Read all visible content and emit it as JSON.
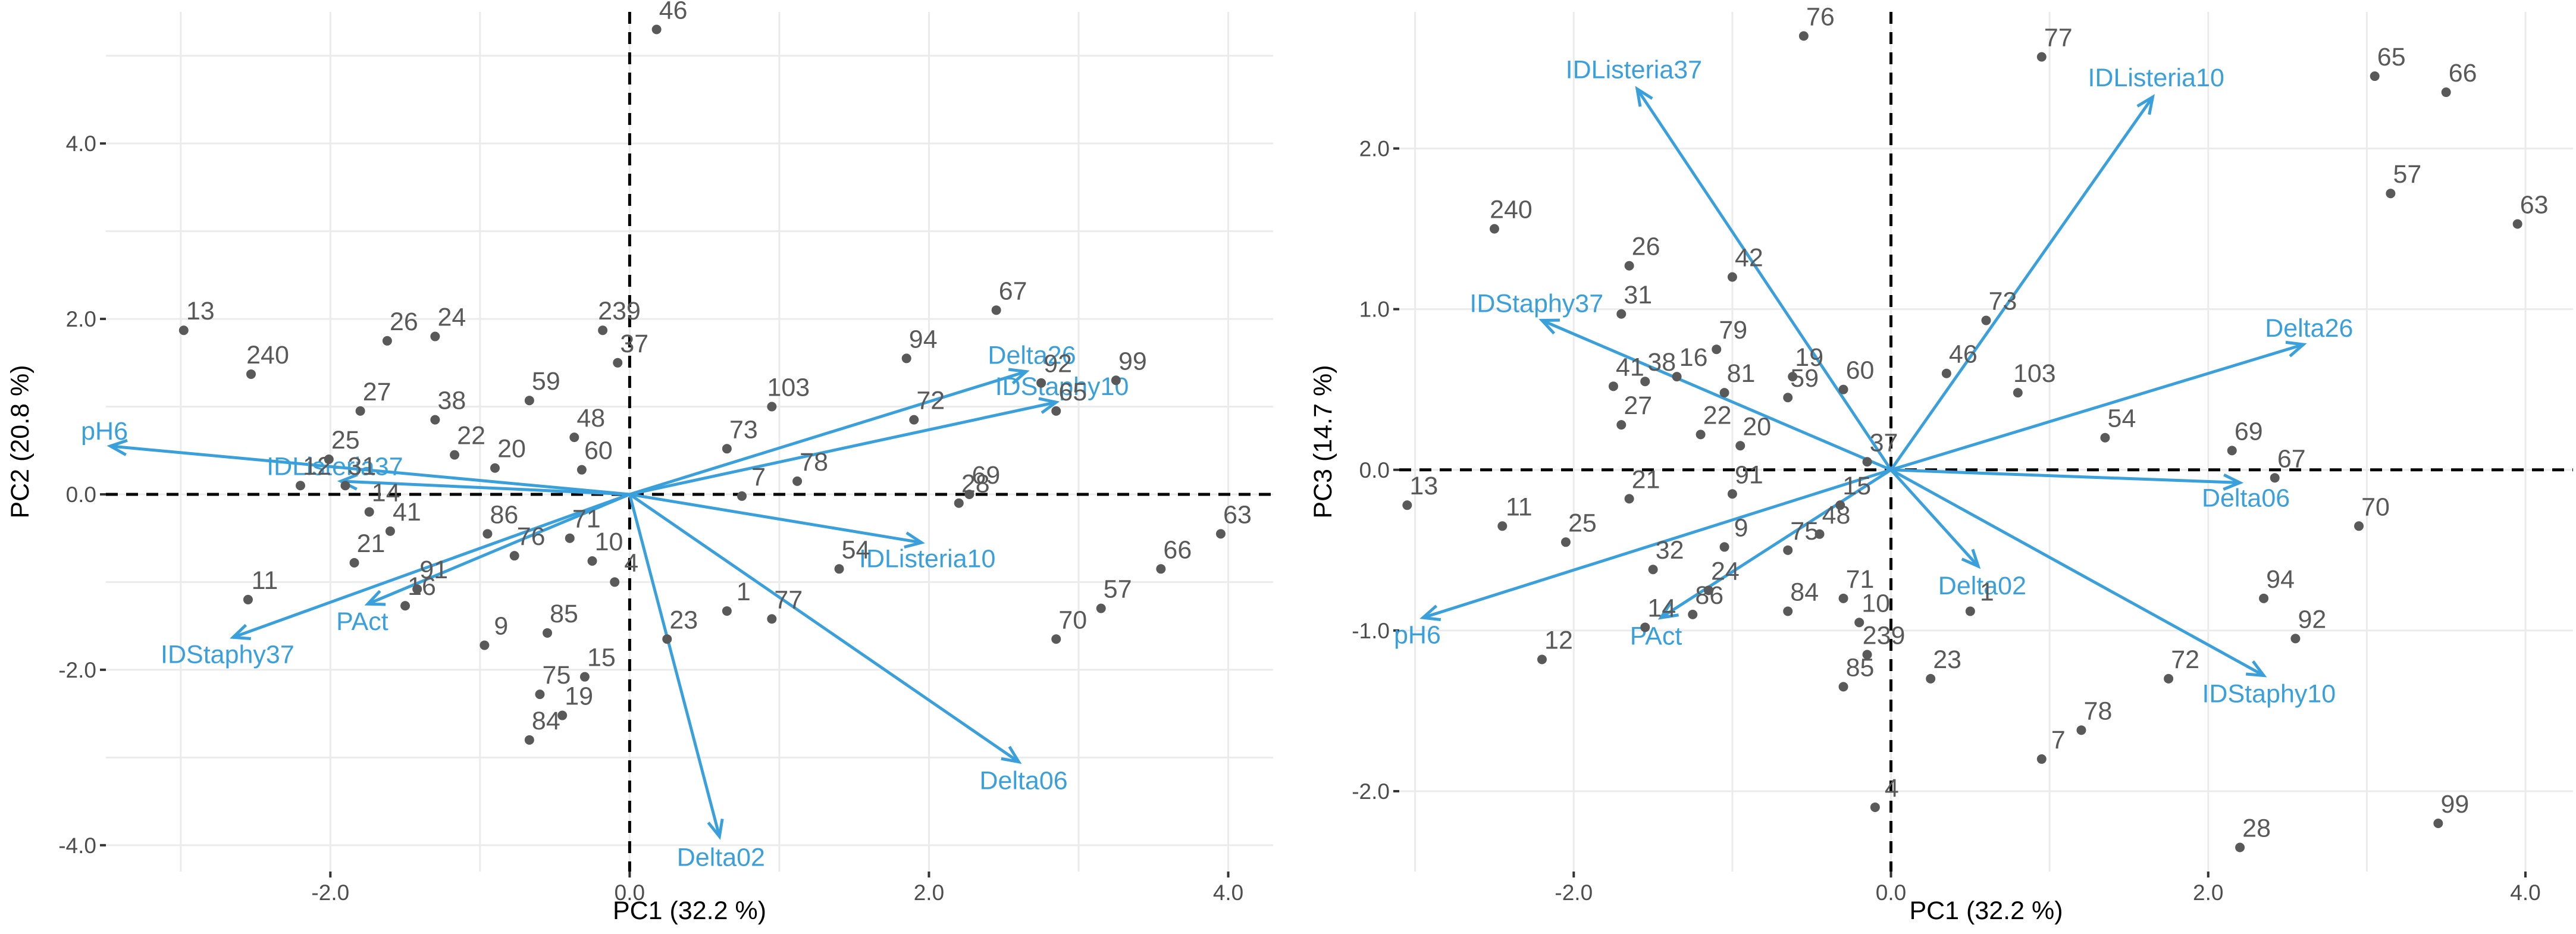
{
  "colors": {
    "points": "#595959",
    "arrows": "#3aa0dc",
    "grid": "#ebebeb"
  },
  "chart_data": [
    {
      "type": "scatter",
      "title": "",
      "xlabel": "PC1 (32.2 %)",
      "ylabel": "PC2 (20.8 %)",
      "xlim": [
        -3.5,
        4.3
      ],
      "ylim": [
        -4.3,
        5.5
      ],
      "xticks": [
        -2,
        0,
        2,
        4
      ],
      "xtick_labels": [
        "-2.0",
        "0.0",
        "2.0",
        "4.0"
      ],
      "yticks": [
        -4,
        -2,
        0,
        2,
        4
      ],
      "ytick_labels": [
        "-4.0",
        "-2.0",
        "0.0",
        "2.0",
        "4.0"
      ],
      "grid": true,
      "points": [
        {
          "label": "46",
          "x": 0.18,
          "y": 5.3
        },
        {
          "label": "13",
          "x": -2.98,
          "y": 1.87
        },
        {
          "label": "240",
          "x": -2.53,
          "y": 1.37
        },
        {
          "label": "24",
          "x": -1.3,
          "y": 1.8
        },
        {
          "label": "26",
          "x": -1.62,
          "y": 1.75
        },
        {
          "label": "239",
          "x": -0.18,
          "y": 1.87
        },
        {
          "label": "37",
          "x": -0.08,
          "y": 1.5
        },
        {
          "label": "59",
          "x": -0.67,
          "y": 1.07
        },
        {
          "label": "27",
          "x": -1.8,
          "y": 0.95
        },
        {
          "label": "38",
          "x": -1.3,
          "y": 0.85
        },
        {
          "label": "48",
          "x": -0.37,
          "y": 0.65
        },
        {
          "label": "22",
          "x": -1.17,
          "y": 0.45
        },
        {
          "label": "25",
          "x": -2.01,
          "y": 0.4
        },
        {
          "label": "20",
          "x": -0.9,
          "y": 0.3
        },
        {
          "label": "60",
          "x": -0.32,
          "y": 0.28
        },
        {
          "label": "31",
          "x": -1.9,
          "y": 0.1
        },
        {
          "label": "14",
          "x": -1.74,
          "y": -0.2
        },
        {
          "label": "12",
          "x": -2.2,
          "y": 0.1
        },
        {
          "label": "41",
          "x": -1.6,
          "y": -0.42
        },
        {
          "label": "86",
          "x": -0.95,
          "y": -0.45
        },
        {
          "label": "71",
          "x": -0.4,
          "y": -0.5
        },
        {
          "label": "76",
          "x": -0.77,
          "y": -0.7
        },
        {
          "label": "10",
          "x": -0.25,
          "y": -0.76
        },
        {
          "label": "21",
          "x": -1.84,
          "y": -0.78
        },
        {
          "label": "91",
          "x": -1.42,
          "y": -1.08
        },
        {
          "label": "16",
          "x": -1.5,
          "y": -1.27
        },
        {
          "label": "9",
          "x": -0.97,
          "y": -1.72
        },
        {
          "label": "85",
          "x": -0.55,
          "y": -1.58
        },
        {
          "label": "4",
          "x": -0.1,
          "y": -1.0
        },
        {
          "label": "75",
          "x": -0.6,
          "y": -2.28
        },
        {
          "label": "84",
          "x": -0.67,
          "y": -2.8
        },
        {
          "label": "15",
          "x": -0.3,
          "y": -2.08
        },
        {
          "label": "19",
          "x": -0.45,
          "y": -2.52
        },
        {
          "label": "11",
          "x": -2.55,
          "y": -1.2
        },
        {
          "label": "23",
          "x": 0.25,
          "y": -1.65
        },
        {
          "label": "1",
          "x": 0.65,
          "y": -1.33
        },
        {
          "label": "77",
          "x": 0.95,
          "y": -1.42
        },
        {
          "label": "103",
          "x": 0.95,
          "y": 1.0
        },
        {
          "label": "73",
          "x": 0.65,
          "y": 0.52
        },
        {
          "label": "7",
          "x": 0.75,
          "y": -0.02
        },
        {
          "label": "78",
          "x": 1.12,
          "y": 0.15
        },
        {
          "label": "72",
          "x": 1.9,
          "y": 0.85
        },
        {
          "label": "94",
          "x": 1.85,
          "y": 1.55
        },
        {
          "label": "67",
          "x": 2.45,
          "y": 2.1
        },
        {
          "label": "92",
          "x": 2.75,
          "y": 1.27
        },
        {
          "label": "99",
          "x": 3.25,
          "y": 1.3
        },
        {
          "label": "65",
          "x": 2.85,
          "y": 0.95
        },
        {
          "label": "69",
          "x": 2.27,
          "y": 0.0
        },
        {
          "label": "28",
          "x": 2.2,
          "y": -0.1
        },
        {
          "label": "54",
          "x": 1.4,
          "y": -0.85
        },
        {
          "label": "63",
          "x": 3.95,
          "y": -0.45
        },
        {
          "label": "66",
          "x": 3.55,
          "y": -0.85
        },
        {
          "label": "57",
          "x": 3.15,
          "y": -1.3
        },
        {
          "label": "70",
          "x": 2.85,
          "y": -1.65
        }
      ],
      "loadings": [
        {
          "label": "pH6",
          "x": -3.47,
          "y": 0.55
        },
        {
          "label": "IDListeria37",
          "x": -1.93,
          "y": 0.15
        },
        {
          "label": "PAct",
          "x": -1.75,
          "y": -1.25
        },
        {
          "label": "IDStaphy37",
          "x": -2.65,
          "y": -1.63
        },
        {
          "label": "Delta26",
          "x": 2.65,
          "y": 1.4
        },
        {
          "label": "IDStaphy10",
          "x": 2.85,
          "y": 1.05
        },
        {
          "label": "IDListeria10",
          "x": 1.95,
          "y": -0.55
        },
        {
          "label": "Delta06",
          "x": 2.6,
          "y": -3.05
        },
        {
          "label": "Delta02",
          "x": 0.6,
          "y": -3.9
        }
      ]
    },
    {
      "type": "scatter",
      "title": "",
      "xlabel": "PC1 (32.2 %)",
      "ylabel": "PC3 (14.7 %)",
      "xlim": [
        -3.1,
        4.3
      ],
      "ylim": [
        -2.5,
        2.85
      ],
      "xticks": [
        -2,
        0,
        2,
        4
      ],
      "xtick_labels": [
        "-2.0",
        "0.0",
        "2.0",
        "4.0"
      ],
      "yticks": [
        -2,
        -1,
        0,
        1,
        2
      ],
      "ytick_labels": [
        "-2.0",
        "-1.0",
        "0.0",
        "1.0",
        "2.0"
      ],
      "grid": true,
      "points": [
        {
          "label": "76",
          "x": -0.55,
          "y": 2.7
        },
        {
          "label": "77",
          "x": 0.95,
          "y": 2.57
        },
        {
          "label": "65",
          "x": 3.05,
          "y": 2.45
        },
        {
          "label": "66",
          "x": 3.5,
          "y": 2.35
        },
        {
          "label": "57",
          "x": 3.15,
          "y": 1.72
        },
        {
          "label": "63",
          "x": 3.95,
          "y": 1.53
        },
        {
          "label": "240",
          "x": -2.5,
          "y": 1.5
        },
        {
          "label": "26",
          "x": -1.65,
          "y": 1.27
        },
        {
          "label": "42",
          "x": -1.0,
          "y": 1.2
        },
        {
          "label": "31",
          "x": -1.7,
          "y": 0.97
        },
        {
          "label": "79",
          "x": -1.1,
          "y": 0.75
        },
        {
          "label": "16",
          "x": -1.35,
          "y": 0.58
        },
        {
          "label": "41",
          "x": -1.75,
          "y": 0.52
        },
        {
          "label": "38",
          "x": -1.55,
          "y": 0.55
        },
        {
          "label": "81",
          "x": -1.05,
          "y": 0.48
        },
        {
          "label": "19",
          "x": -0.62,
          "y": 0.58
        },
        {
          "label": "60",
          "x": -0.3,
          "y": 0.5
        },
        {
          "label": "59",
          "x": -0.65,
          "y": 0.45
        },
        {
          "label": "27",
          "x": -1.7,
          "y": 0.28
        },
        {
          "label": "22",
          "x": -1.2,
          "y": 0.22
        },
        {
          "label": "20",
          "x": -0.95,
          "y": 0.15
        },
        {
          "label": "37",
          "x": -0.15,
          "y": 0.05
        },
        {
          "label": "73",
          "x": 0.6,
          "y": 0.93
        },
        {
          "label": "46",
          "x": 0.35,
          "y": 0.6
        },
        {
          "label": "103",
          "x": 0.8,
          "y": 0.48
        },
        {
          "label": "13",
          "x": -3.05,
          "y": -0.22
        },
        {
          "label": "11",
          "x": -2.45,
          "y": -0.35
        },
        {
          "label": "25",
          "x": -2.05,
          "y": -0.45
        },
        {
          "label": "21",
          "x": -1.65,
          "y": -0.18
        },
        {
          "label": "91",
          "x": -1.0,
          "y": -0.15
        },
        {
          "label": "15",
          "x": -0.32,
          "y": -0.22
        },
        {
          "label": "32",
          "x": -1.5,
          "y": -0.62
        },
        {
          "label": "9",
          "x": -1.05,
          "y": -0.48
        },
        {
          "label": "75",
          "x": -0.65,
          "y": -0.5
        },
        {
          "label": "48",
          "x": -0.45,
          "y": -0.4
        },
        {
          "label": "24",
          "x": -1.15,
          "y": -0.75
        },
        {
          "label": "14",
          "x": -1.55,
          "y": -0.98
        },
        {
          "label": "86",
          "x": -1.25,
          "y": -0.9
        },
        {
          "label": "84",
          "x": -0.65,
          "y": -0.88
        },
        {
          "label": "71",
          "x": -0.3,
          "y": -0.8
        },
        {
          "label": "10",
          "x": -0.2,
          "y": -0.95
        },
        {
          "label": "239",
          "x": -0.15,
          "y": -1.15
        },
        {
          "label": "85",
          "x": -0.3,
          "y": -1.35
        },
        {
          "label": "23",
          "x": 0.25,
          "y": -1.3
        },
        {
          "label": "1",
          "x": 0.5,
          "y": -0.88
        },
        {
          "label": "4",
          "x": -0.1,
          "y": -2.1
        },
        {
          "label": "12",
          "x": -2.2,
          "y": -1.18
        },
        {
          "label": "54",
          "x": 1.35,
          "y": 0.2
        },
        {
          "label": "69",
          "x": 2.15,
          "y": 0.12
        },
        {
          "label": "67",
          "x": 2.42,
          "y": -0.05
        },
        {
          "label": "70",
          "x": 2.95,
          "y": -0.35
        },
        {
          "label": "94",
          "x": 2.35,
          "y": -0.8
        },
        {
          "label": "92",
          "x": 2.55,
          "y": -1.05
        },
        {
          "label": "72",
          "x": 1.75,
          "y": -1.3
        },
        {
          "label": "78",
          "x": 1.2,
          "y": -1.62
        },
        {
          "label": "7",
          "x": 0.95,
          "y": -1.8
        },
        {
          "label": "28",
          "x": 2.2,
          "y": -2.35
        },
        {
          "label": "99",
          "x": 3.45,
          "y": -2.2
        }
      ],
      "loadings": [
        {
          "label": "IDListeria37",
          "x": -1.6,
          "y": 2.37
        },
        {
          "label": "IDStaphy37",
          "x": -2.2,
          "y": 0.93
        },
        {
          "label": "pH6",
          "x": -2.95,
          "y": -0.92
        },
        {
          "label": "PAct",
          "x": -1.45,
          "y": -0.92
        },
        {
          "label": "IDListeria10",
          "x": 1.65,
          "y": 2.32
        },
        {
          "label": "Delta26",
          "x": 2.6,
          "y": 0.78
        },
        {
          "label": "Delta06",
          "x": 2.2,
          "y": -0.08
        },
        {
          "label": "Delta02",
          "x": 0.55,
          "y": -0.6
        },
        {
          "label": "IDStaphy10",
          "x": 2.35,
          "y": -1.28
        }
      ]
    }
  ]
}
